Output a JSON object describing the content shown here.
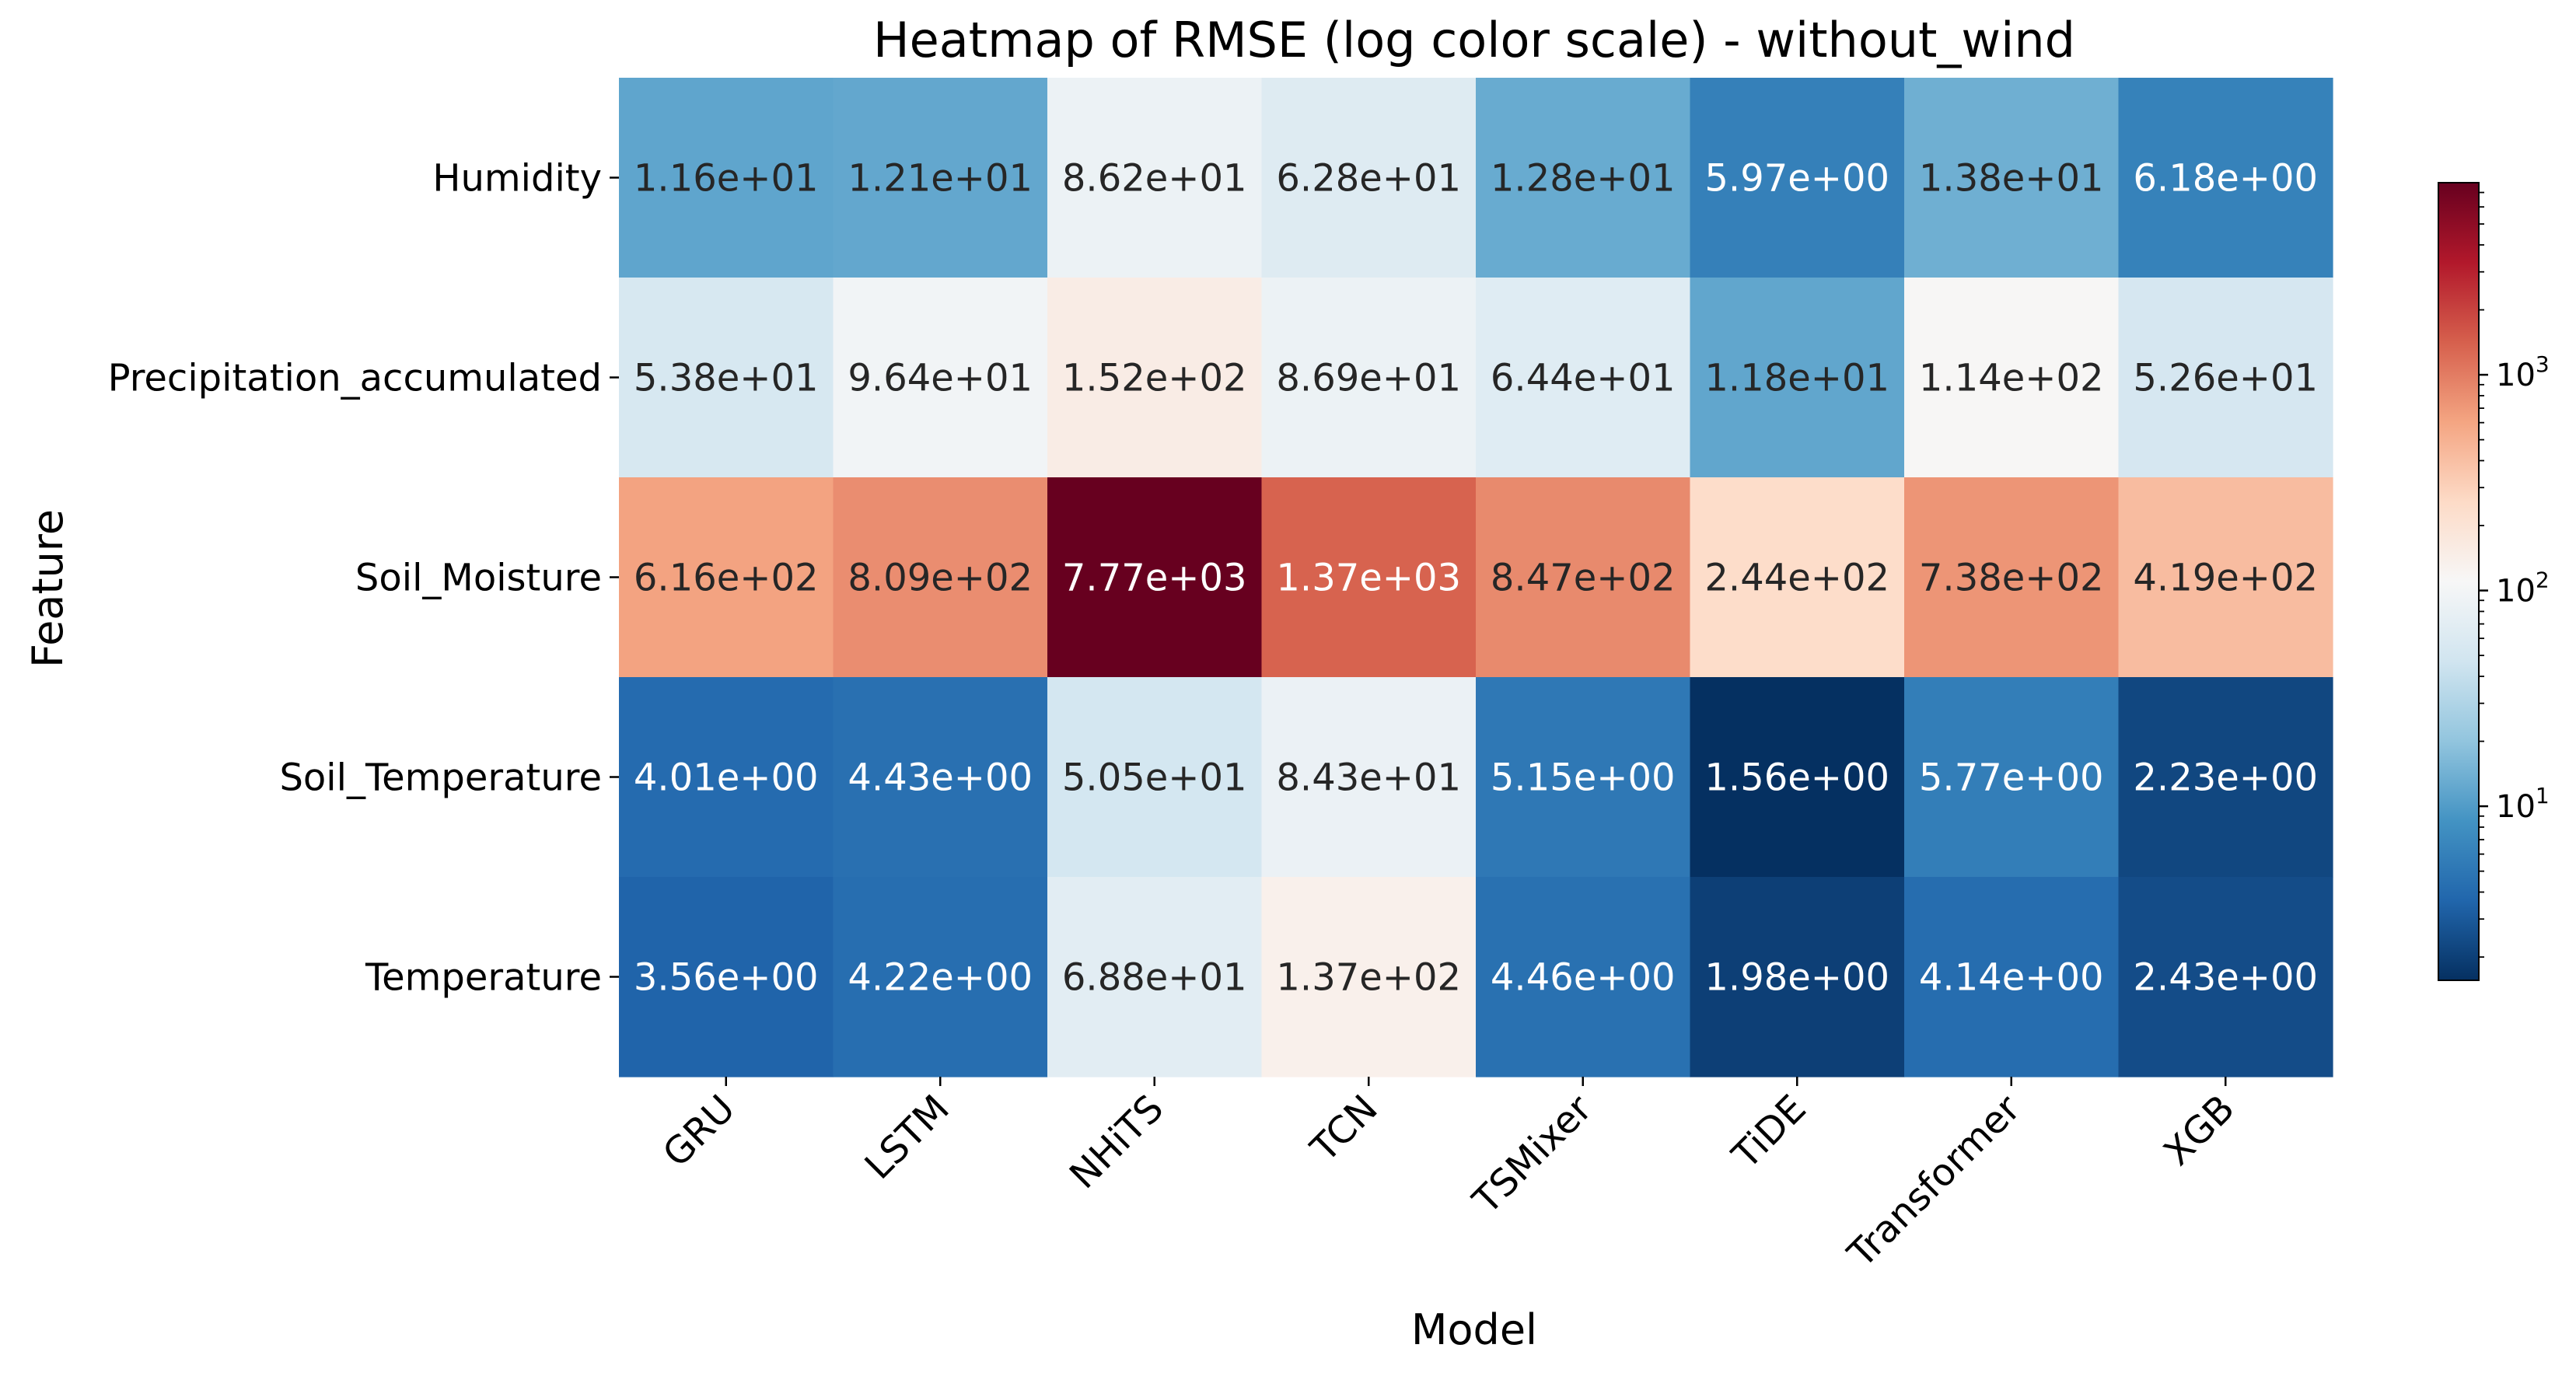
{
  "chart_data": {
    "type": "heatmap",
    "title": "Heatmap of RMSE (log color scale) - without_wind",
    "xlabel": "Model",
    "ylabel": "Feature",
    "x_categories": [
      "GRU",
      "LSTM",
      "NHiTS",
      "TCN",
      "TSMixer",
      "TiDE",
      "Transformer",
      "XGB"
    ],
    "y_categories": [
      "Humidity",
      "Precipitation_accumulated",
      "Soil_Moisture",
      "Soil_Temperature",
      "Temperature"
    ],
    "values": [
      [
        11.6,
        12.1,
        86.2,
        62.8,
        12.8,
        5.97,
        13.8,
        6.18
      ],
      [
        53.8,
        96.4,
        152,
        86.9,
        64.4,
        11.8,
        114,
        52.6
      ],
      [
        616,
        809,
        7770,
        1370,
        847,
        244,
        738,
        419
      ],
      [
        4.01,
        4.43,
        50.5,
        84.3,
        5.15,
        1.56,
        5.77,
        2.23
      ],
      [
        3.56,
        4.22,
        68.8,
        137,
        4.46,
        1.98,
        4.14,
        2.43
      ]
    ],
    "labels": [
      [
        "1.16e+01",
        "1.21e+01",
        "8.62e+01",
        "6.28e+01",
        "1.28e+01",
        "5.97e+00",
        "1.38e+01",
        "6.18e+00"
      ],
      [
        "5.38e+01",
        "9.64e+01",
        "1.52e+02",
        "8.69e+01",
        "6.44e+01",
        "1.18e+01",
        "1.14e+02",
        "5.26e+01"
      ],
      [
        "6.16e+02",
        "8.09e+02",
        "7.77e+03",
        "1.37e+03",
        "8.47e+02",
        "2.44e+02",
        "7.38e+02",
        "4.19e+02"
      ],
      [
        "4.01e+00",
        "4.43e+00",
        "5.05e+01",
        "8.43e+01",
        "5.15e+00",
        "1.56e+00",
        "5.77e+00",
        "2.23e+00"
      ],
      [
        "3.56e+00",
        "4.22e+00",
        "6.88e+01",
        "1.37e+02",
        "4.46e+00",
        "1.98e+00",
        "4.14e+00",
        "2.43e+00"
      ]
    ],
    "colormap": "RdBu_r",
    "color_scale": "log",
    "color_range": [
      1.56,
      7770
    ],
    "colorbar": {
      "ticks": [
        {
          "value": 10,
          "label": "10",
          "exp": "1"
        },
        {
          "value": 100,
          "label": "10",
          "exp": "2"
        },
        {
          "value": 1000,
          "label": "10",
          "exp": "3"
        }
      ]
    },
    "annotation_colors": {
      "dark": "#262626",
      "light": "#ffffff"
    }
  }
}
